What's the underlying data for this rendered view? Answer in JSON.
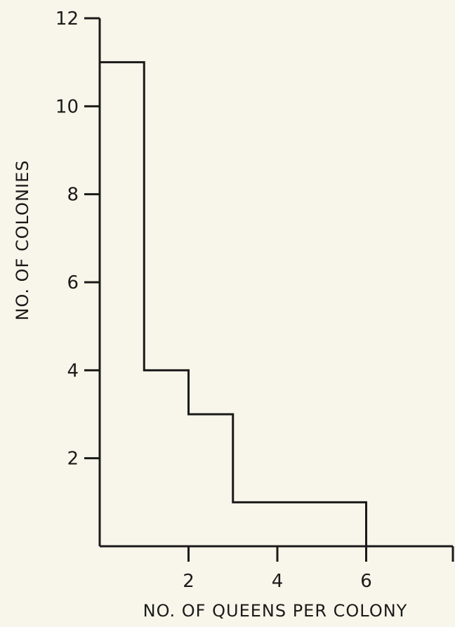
{
  "chart_data": {
    "type": "bar",
    "style": "step-histogram",
    "title": "",
    "xlabel": "NO. OF QUEENS PER COLONY",
    "ylabel": "NO. OF COLONIES",
    "bins": [
      {
        "x0": 0,
        "x1": 1,
        "value": 11
      },
      {
        "x0": 1,
        "x1": 2,
        "value": 4
      },
      {
        "x0": 2,
        "x1": 3,
        "value": 3
      },
      {
        "x0": 3,
        "x1": 6,
        "value": 1
      }
    ],
    "xlim": [
      0,
      8
    ],
    "ylim": [
      0,
      12
    ],
    "x_ticks": [
      2,
      4,
      6
    ],
    "x_tick_labels": [
      "2",
      "4",
      "6"
    ],
    "y_ticks": [
      2,
      4,
      6,
      8,
      10,
      12
    ],
    "y_tick_labels": [
      "2",
      "4",
      "6",
      "8",
      "10",
      "12"
    ],
    "grid": false,
    "legend": "none",
    "colors": {
      "ink": "#1a1a1a",
      "background": "#f8f6ea"
    }
  }
}
